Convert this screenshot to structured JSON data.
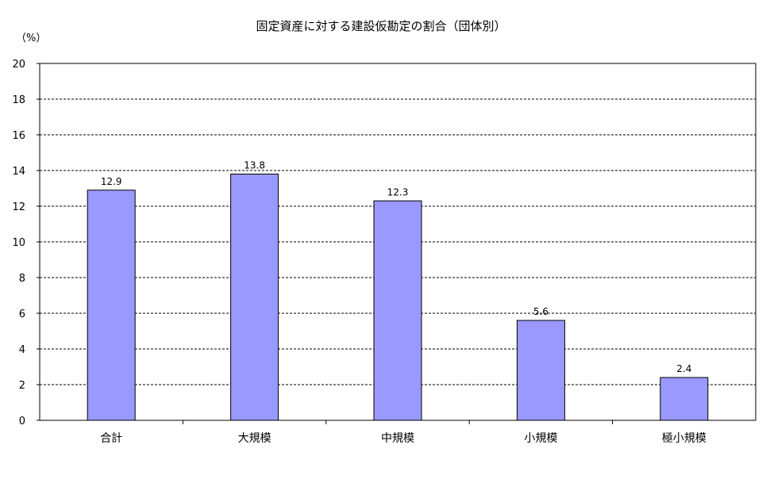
{
  "chart_data": {
    "type": "bar",
    "title": "固定資産に対する建設仮勘定の割合（団体別）",
    "ylabel": "（%）",
    "categories": [
      "合計",
      "大規模",
      "中規模",
      "小規模",
      "極小規模"
    ],
    "values": [
      12.9,
      13.8,
      12.3,
      5.6,
      2.4
    ],
    "value_labels": [
      "12.9",
      "13.8",
      "12.3",
      "5.6",
      "2.4"
    ],
    "ylim": [
      0,
      20
    ],
    "yticks": [
      "0",
      "2",
      "4",
      "6",
      "8",
      "10",
      "12",
      "14",
      "16",
      "18",
      "20"
    ],
    "bar_color": "#9999ff",
    "bar_border_color": "#000000",
    "grid": "horizontal dashed",
    "legend": "none"
  }
}
